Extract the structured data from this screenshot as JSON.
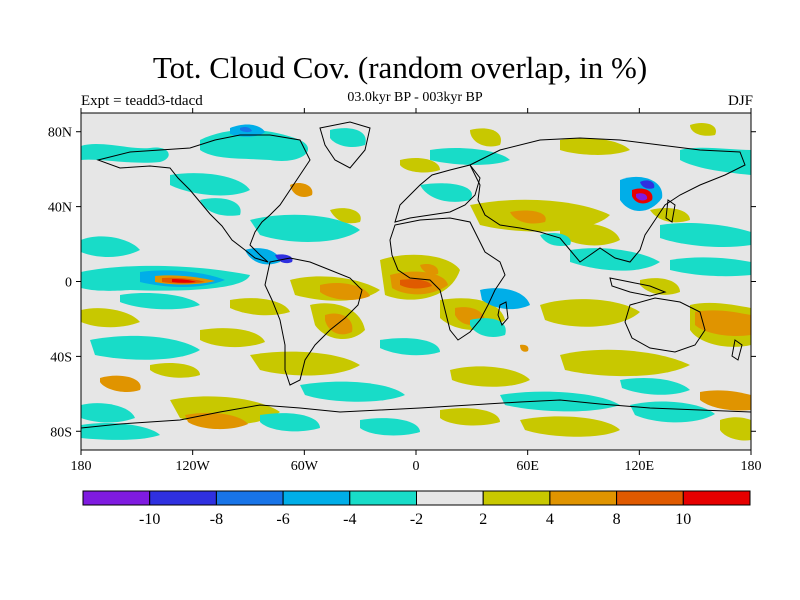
{
  "title": "Tot. Cloud Cov. (random overlap, in %)",
  "experiment": "Expt = teadd3-tdacd",
  "period": "03.0kyr BP - 003kyr BP",
  "season": "DJF",
  "chart_data": {
    "type": "heatmap",
    "projection": "equirectangular",
    "xlim": [
      -180,
      180
    ],
    "ylim": [
      -90,
      90
    ],
    "x_ticks": [
      "180",
      "120W",
      "60W",
      "0",
      "60E",
      "120E",
      "180"
    ],
    "y_ticks": [
      "80N",
      "40N",
      "0",
      "40S",
      "80S"
    ],
    "colorbar": {
      "labels": [
        "-10",
        "-8",
        "-6",
        "-4",
        "-2",
        "2",
        "4",
        "8",
        "10"
      ],
      "colors": [
        "#7f1be0",
        "#2f30e0",
        "#1874e8",
        "#00aee8",
        "#18dcc8",
        "#e6e6e6",
        "#c8c800",
        "#e09400",
        "#e05a00",
        "#e60000"
      ]
    },
    "anomaly_regions": [
      {
        "lon": -150,
        "lat": 3,
        "level": 10
      },
      {
        "lon": -140,
        "lat": 5,
        "level": -4
      },
      {
        "lon": -110,
        "lat": 16,
        "level": -4
      },
      {
        "lon": -80,
        "lat": -5,
        "level": 4
      },
      {
        "lon": -55,
        "lat": -10,
        "level": 8
      },
      {
        "lon": -40,
        "lat": 0,
        "level": 4
      },
      {
        "lon": -10,
        "lat": 2,
        "level": 8
      },
      {
        "lon": 10,
        "lat": 5,
        "level": 8
      },
      {
        "lon": 20,
        "lat": -15,
        "level": 4
      },
      {
        "lon": 45,
        "lat": -10,
        "level": -4
      },
      {
        "lon": 90,
        "lat": 25,
        "level": -4
      },
      {
        "lon": 110,
        "lat": 42,
        "level": 10
      },
      {
        "lon": 150,
        "lat": -20,
        "level": 8
      },
      {
        "lon": -90,
        "lat": -65,
        "level": 4
      },
      {
        "lon": 60,
        "lat": -55,
        "level": -4
      },
      {
        "lon": -40,
        "lat": 55,
        "level": -4
      },
      {
        "lon": 0,
        "lat": 60,
        "level": 4
      },
      {
        "lon": 40,
        "lat": 75,
        "level": 4
      }
    ]
  }
}
